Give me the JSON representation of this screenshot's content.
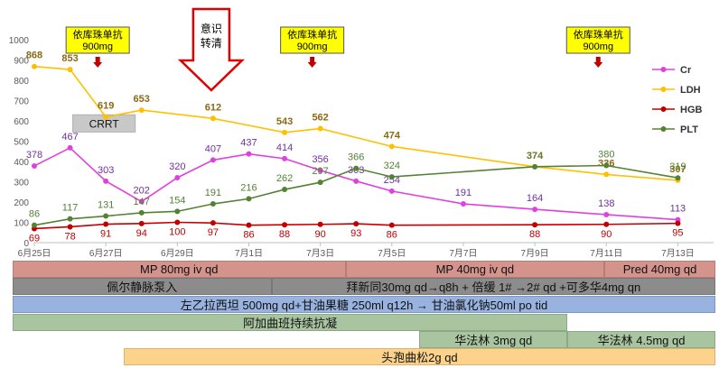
{
  "chart_data": {
    "type": "line",
    "title": "",
    "xlabel": "",
    "ylabel": "",
    "ylim": [
      0,
      1000
    ],
    "yticks": [
      0,
      100,
      200,
      300,
      400,
      500,
      600,
      700,
      800,
      900,
      1000
    ],
    "xlim": [
      "6月25日",
      "7月14日"
    ],
    "xticks": [
      "6月25日",
      "6月27日",
      "6月29日",
      "7月1日",
      "7月3日",
      "7月5日",
      "7月7日",
      "7月9日",
      "7月11日",
      "7月13日"
    ],
    "grid": false,
    "legend_position": "right",
    "series": [
      {
        "name": "Cr",
        "color": "#e040e0",
        "label_color": "#7030a0",
        "points": [
          [
            "6月25日",
            378
          ],
          [
            "6月26日",
            467
          ],
          [
            "6月27日",
            303
          ],
          [
            "6月28日",
            202
          ],
          [
            "6月29日",
            320
          ],
          [
            "6月30日",
            407
          ],
          [
            "7月1日",
            437
          ],
          [
            "7月2日",
            414
          ],
          [
            "7月3日",
            356
          ],
          [
            "7月4日",
            303
          ],
          [
            "7月5日",
            254
          ],
          [
            "7月7日",
            191
          ],
          [
            "7月9日",
            164
          ],
          [
            "7月11日",
            138
          ],
          [
            "7月13日",
            113
          ]
        ]
      },
      {
        "name": "LDH",
        "color": "#ffc000",
        "label_color": "#8b6914",
        "points": [
          [
            "6月25日",
            868
          ],
          [
            "6月26日",
            853
          ],
          [
            "6月27日",
            619
          ],
          [
            "6月28日",
            653
          ],
          [
            "6月30日",
            612
          ],
          [
            "7月2日",
            543
          ],
          [
            "7月3日",
            562
          ],
          [
            "7月5日",
            474
          ],
          [
            "7月9日",
            374
          ],
          [
            "7月11日",
            336
          ],
          [
            "7月13日",
            307
          ]
        ]
      },
      {
        "name": "HGB",
        "color": "#c00000",
        "label_color": "#c00000",
        "points": [
          [
            "6月25日",
            69
          ],
          [
            "6月26日",
            78
          ],
          [
            "6月27日",
            91
          ],
          [
            "6月28日",
            94
          ],
          [
            "6月29日",
            100
          ],
          [
            "6月30日",
            97
          ],
          [
            "7月1日",
            86
          ],
          [
            "7月2日",
            88
          ],
          [
            "7月3日",
            90
          ],
          [
            "7月4日",
            93
          ],
          [
            "7月5日",
            86
          ],
          [
            "7月9日",
            88
          ],
          [
            "7月11日",
            90
          ],
          [
            "7月13日",
            95
          ]
        ]
      },
      {
        "name": "PLT",
        "color": "#548235",
        "label_color": "#548235",
        "points": [
          [
            "6月25日",
            86
          ],
          [
            "6月26日",
            117
          ],
          [
            "6月27日",
            131
          ],
          [
            "6月28日",
            147
          ],
          [
            "6月29日",
            154
          ],
          [
            "6月30日",
            191
          ],
          [
            "7月1日",
            216
          ],
          [
            "7月2日",
            262
          ],
          [
            "7月3日",
            297
          ],
          [
            "7月4日",
            366
          ],
          [
            "7月5日",
            324
          ],
          [
            "7月9日",
            374
          ],
          [
            "7月11日",
            380
          ],
          [
            "7月13日",
            319
          ]
        ]
      }
    ],
    "annotations": [
      {
        "text": "依库珠单抗 900mg",
        "date": "6月27日",
        "type": "box_with_arrow"
      },
      {
        "text": "意识 转清",
        "date": "6月30日",
        "type": "big_arrow"
      },
      {
        "text": "依库珠单抗 900mg",
        "date": "7月3日",
        "type": "box_with_arrow"
      },
      {
        "text": "依库珠单抗 900mg",
        "date": "7月11日",
        "type": "box_with_arrow"
      },
      {
        "text": "CRRT",
        "from": "6月26日",
        "to": "6月28日",
        "type": "band"
      }
    ]
  },
  "treatment_bars": [
    {
      "segments": [
        {
          "text": "MP 80mg iv qd",
          "from": "6月25日",
          "to": "7月4日",
          "color": "#d4948c"
        },
        {
          "text": "MP 40mg iv qd",
          "from": "7月4日",
          "to": "7月11日",
          "color": "#d4948c"
        },
        {
          "text": "Pred 40mg qd",
          "from": "7月11日",
          "to": "7月14日",
          "color": "#d4948c"
        }
      ]
    },
    {
      "segments": [
        {
          "text": "佩尔静脉泵入",
          "from": "6月25日",
          "to": "7月2日",
          "color": "#8c8c8c"
        },
        {
          "text": "拜新同30mg qd→q8h + 倍缓 1# →2# qd +可多华4mg qn",
          "from": "7月2日",
          "to": "7月14日",
          "color": "#8c8c8c"
        }
      ]
    },
    {
      "segments": [
        {
          "text": "左乙拉西坦 500mg qd+甘油果糖 250ml q12h → 甘油氯化钠50ml po tid",
          "from": "6月25日",
          "to": "7月14日",
          "color": "#98b3e0"
        }
      ]
    },
    {
      "segments": [
        {
          "text": "阿加曲班持续抗凝",
          "from": "6月25日",
          "to": "7月10日",
          "color": "#a9c5a0"
        }
      ]
    },
    {
      "segments": [
        {
          "text": "华法林 3mg qd",
          "from": "7月6日",
          "to": "7月10日",
          "color": "#a9c5a0"
        },
        {
          "text": "华法林 4.5mg qd",
          "from": "7月10日",
          "to": "7月14日",
          "color": "#a9c5a0"
        }
      ]
    },
    {
      "segments": [
        {
          "text": "头孢曲松2g qd",
          "from": "6月28日",
          "to": "7月14日",
          "color": "#fdd38b"
        }
      ]
    }
  ]
}
